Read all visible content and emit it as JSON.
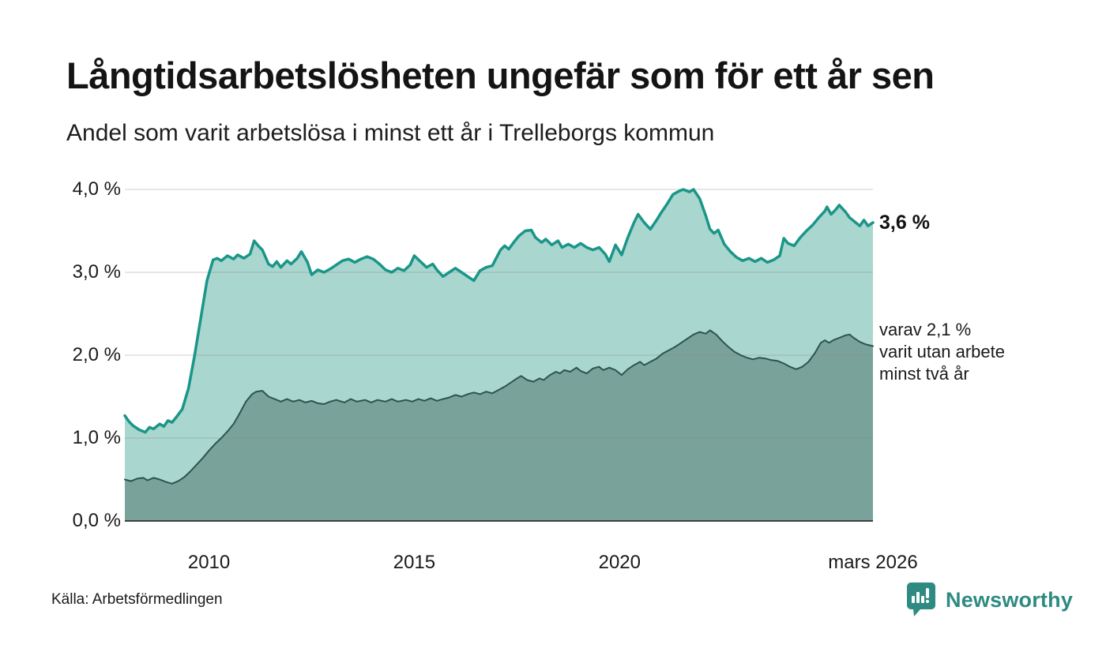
{
  "header": {
    "title": "Långtidsarbetslösheten ungefär som för ett år sen",
    "subtitle": "Andel som varit arbetslösa i minst ett år i Trelleborgs kommun"
  },
  "footer": {
    "source": "Källa: Arbetsförmedlingen",
    "brand": "Newsworthy",
    "brand_color": "#2f8b82"
  },
  "annotations": {
    "latest_total": {
      "label": "3,6 %",
      "value": 3.6
    },
    "latest_two_years": {
      "lines": [
        "varav 2,1 %",
        "varit utan arbete",
        "minst två år"
      ],
      "value": 2.1
    }
  },
  "chart_data": {
    "type": "area",
    "title": "Långtidsarbetslösheten ungefär som för ett år sen",
    "subtitle": "Andel som varit arbetslösa i minst ett år i Trelleborgs kommun",
    "xlabel": "",
    "ylabel": "",
    "xlim": [
      2007.95,
      2026.17
    ],
    "ylim": [
      0,
      4
    ],
    "grid": true,
    "grid_color": "#8a8a8a",
    "axis_color": "#3f3f3f",
    "y_ticks": [
      {
        "label": "4,0 %",
        "value": 4.0
      },
      {
        "label": "3,0 %",
        "value": 3.0
      },
      {
        "label": "2,0 %",
        "value": 2.0
      },
      {
        "label": "1,0 %",
        "value": 1.0
      },
      {
        "label": "0,0 %",
        "value": 0.0
      }
    ],
    "x_ticks": [
      {
        "label": "2010",
        "value": 2010
      },
      {
        "label": "2015",
        "value": 2015
      },
      {
        "label": "2020",
        "value": 2020
      },
      {
        "label": "mars 2026",
        "value": 2026.17
      }
    ],
    "series": [
      {
        "name": "arbetslösa minst ett år",
        "line_color": "#1a9689",
        "fill_color": "#a9d6ce",
        "line_width": 3.5,
        "last_value": 3.6,
        "points": [
          [
            2007.95,
            1.27
          ],
          [
            2008.05,
            1.2
          ],
          [
            2008.15,
            1.15
          ],
          [
            2008.3,
            1.1
          ],
          [
            2008.45,
            1.07
          ],
          [
            2008.55,
            1.13
          ],
          [
            2008.65,
            1.11
          ],
          [
            2008.8,
            1.17
          ],
          [
            2008.9,
            1.14
          ],
          [
            2009.0,
            1.21
          ],
          [
            2009.1,
            1.19
          ],
          [
            2009.2,
            1.25
          ],
          [
            2009.35,
            1.35
          ],
          [
            2009.5,
            1.6
          ],
          [
            2009.65,
            2.0
          ],
          [
            2009.8,
            2.45
          ],
          [
            2009.95,
            2.9
          ],
          [
            2010.1,
            3.15
          ],
          [
            2010.2,
            3.17
          ],
          [
            2010.3,
            3.14
          ],
          [
            2010.45,
            3.2
          ],
          [
            2010.6,
            3.16
          ],
          [
            2010.7,
            3.21
          ],
          [
            2010.85,
            3.17
          ],
          [
            2011.0,
            3.22
          ],
          [
            2011.1,
            3.38
          ],
          [
            2011.2,
            3.32
          ],
          [
            2011.3,
            3.27
          ],
          [
            2011.45,
            3.1
          ],
          [
            2011.55,
            3.07
          ],
          [
            2011.65,
            3.13
          ],
          [
            2011.75,
            3.06
          ],
          [
            2011.9,
            3.14
          ],
          [
            2012.0,
            3.1
          ],
          [
            2012.15,
            3.17
          ],
          [
            2012.25,
            3.25
          ],
          [
            2012.4,
            3.12
          ],
          [
            2012.5,
            2.97
          ],
          [
            2012.65,
            3.03
          ],
          [
            2012.8,
            3.0
          ],
          [
            2012.95,
            3.04
          ],
          [
            2013.1,
            3.09
          ],
          [
            2013.25,
            3.14
          ],
          [
            2013.4,
            3.16
          ],
          [
            2013.55,
            3.12
          ],
          [
            2013.7,
            3.16
          ],
          [
            2013.85,
            3.19
          ],
          [
            2014.0,
            3.16
          ],
          [
            2014.15,
            3.1
          ],
          [
            2014.3,
            3.03
          ],
          [
            2014.45,
            3.0
          ],
          [
            2014.6,
            3.05
          ],
          [
            2014.75,
            3.02
          ],
          [
            2014.9,
            3.09
          ],
          [
            2015.0,
            3.2
          ],
          [
            2015.15,
            3.13
          ],
          [
            2015.3,
            3.06
          ],
          [
            2015.45,
            3.1
          ],
          [
            2015.55,
            3.03
          ],
          [
            2015.7,
            2.95
          ],
          [
            2015.85,
            3.0
          ],
          [
            2016.0,
            3.05
          ],
          [
            2016.15,
            3.0
          ],
          [
            2016.3,
            2.95
          ],
          [
            2016.45,
            2.9
          ],
          [
            2016.6,
            3.02
          ],
          [
            2016.75,
            3.06
          ],
          [
            2016.9,
            3.08
          ],
          [
            2017.1,
            3.27
          ],
          [
            2017.2,
            3.32
          ],
          [
            2017.3,
            3.28
          ],
          [
            2017.45,
            3.38
          ],
          [
            2017.55,
            3.44
          ],
          [
            2017.7,
            3.5
          ],
          [
            2017.85,
            3.51
          ],
          [
            2017.95,
            3.42
          ],
          [
            2018.1,
            3.36
          ],
          [
            2018.2,
            3.4
          ],
          [
            2018.35,
            3.33
          ],
          [
            2018.5,
            3.38
          ],
          [
            2018.6,
            3.3
          ],
          [
            2018.75,
            3.34
          ],
          [
            2018.9,
            3.3
          ],
          [
            2019.05,
            3.35
          ],
          [
            2019.2,
            3.3
          ],
          [
            2019.35,
            3.27
          ],
          [
            2019.5,
            3.3
          ],
          [
            2019.65,
            3.22
          ],
          [
            2019.75,
            3.13
          ],
          [
            2019.9,
            3.33
          ],
          [
            2020.05,
            3.21
          ],
          [
            2020.2,
            3.42
          ],
          [
            2020.35,
            3.6
          ],
          [
            2020.45,
            3.7
          ],
          [
            2020.6,
            3.6
          ],
          [
            2020.75,
            3.52
          ],
          [
            2020.9,
            3.63
          ],
          [
            2021.0,
            3.71
          ],
          [
            2021.15,
            3.82
          ],
          [
            2021.3,
            3.94
          ],
          [
            2021.45,
            3.98
          ],
          [
            2021.55,
            4.0
          ],
          [
            2021.7,
            3.97
          ],
          [
            2021.8,
            4.0
          ],
          [
            2021.95,
            3.89
          ],
          [
            2022.1,
            3.68
          ],
          [
            2022.2,
            3.52
          ],
          [
            2022.3,
            3.47
          ],
          [
            2022.4,
            3.51
          ],
          [
            2022.55,
            3.34
          ],
          [
            2022.7,
            3.25
          ],
          [
            2022.85,
            3.18
          ],
          [
            2023.0,
            3.14
          ],
          [
            2023.15,
            3.17
          ],
          [
            2023.3,
            3.13
          ],
          [
            2023.45,
            3.17
          ],
          [
            2023.6,
            3.12
          ],
          [
            2023.75,
            3.15
          ],
          [
            2023.9,
            3.2
          ],
          [
            2024.0,
            3.41
          ],
          [
            2024.1,
            3.35
          ],
          [
            2024.25,
            3.32
          ],
          [
            2024.4,
            3.42
          ],
          [
            2024.55,
            3.5
          ],
          [
            2024.7,
            3.57
          ],
          [
            2024.85,
            3.66
          ],
          [
            2025.0,
            3.74
          ],
          [
            2025.05,
            3.79
          ],
          [
            2025.15,
            3.7
          ],
          [
            2025.25,
            3.75
          ],
          [
            2025.35,
            3.81
          ],
          [
            2025.5,
            3.73
          ],
          [
            2025.6,
            3.66
          ],
          [
            2025.75,
            3.6
          ],
          [
            2025.85,
            3.56
          ],
          [
            2025.95,
            3.63
          ],
          [
            2026.05,
            3.56
          ],
          [
            2026.17,
            3.6
          ]
        ]
      },
      {
        "name": "varit utan arbete minst två år",
        "line_color": "#2c544d",
        "fill_color": "#79a39a",
        "line_width": 2,
        "last_value": 2.1,
        "points": [
          [
            2007.95,
            0.5
          ],
          [
            2008.1,
            0.48
          ],
          [
            2008.25,
            0.51
          ],
          [
            2008.4,
            0.52
          ],
          [
            2008.5,
            0.49
          ],
          [
            2008.65,
            0.52
          ],
          [
            2008.8,
            0.5
          ],
          [
            2008.95,
            0.47
          ],
          [
            2009.1,
            0.45
          ],
          [
            2009.25,
            0.48
          ],
          [
            2009.4,
            0.53
          ],
          [
            2009.55,
            0.6
          ],
          [
            2009.7,
            0.68
          ],
          [
            2009.85,
            0.76
          ],
          [
            2010.0,
            0.85
          ],
          [
            2010.15,
            0.93
          ],
          [
            2010.3,
            1.0
          ],
          [
            2010.45,
            1.08
          ],
          [
            2010.6,
            1.17
          ],
          [
            2010.75,
            1.3
          ],
          [
            2010.9,
            1.44
          ],
          [
            2011.05,
            1.53
          ],
          [
            2011.15,
            1.56
          ],
          [
            2011.3,
            1.57
          ],
          [
            2011.45,
            1.5
          ],
          [
            2011.6,
            1.47
          ],
          [
            2011.75,
            1.44
          ],
          [
            2011.9,
            1.47
          ],
          [
            2012.05,
            1.44
          ],
          [
            2012.2,
            1.46
          ],
          [
            2012.35,
            1.43
          ],
          [
            2012.5,
            1.45
          ],
          [
            2012.65,
            1.42
          ],
          [
            2012.8,
            1.41
          ],
          [
            2012.95,
            1.44
          ],
          [
            2013.1,
            1.46
          ],
          [
            2013.3,
            1.43
          ],
          [
            2013.45,
            1.47
          ],
          [
            2013.6,
            1.44
          ],
          [
            2013.8,
            1.46
          ],
          [
            2013.95,
            1.43
          ],
          [
            2014.1,
            1.46
          ],
          [
            2014.3,
            1.44
          ],
          [
            2014.45,
            1.47
          ],
          [
            2014.6,
            1.44
          ],
          [
            2014.8,
            1.46
          ],
          [
            2014.95,
            1.44
          ],
          [
            2015.1,
            1.47
          ],
          [
            2015.25,
            1.45
          ],
          [
            2015.4,
            1.48
          ],
          [
            2015.55,
            1.45
          ],
          [
            2015.7,
            1.47
          ],
          [
            2015.85,
            1.49
          ],
          [
            2016.0,
            1.52
          ],
          [
            2016.15,
            1.5
          ],
          [
            2016.3,
            1.53
          ],
          [
            2016.45,
            1.55
          ],
          [
            2016.6,
            1.53
          ],
          [
            2016.75,
            1.56
          ],
          [
            2016.9,
            1.54
          ],
          [
            2017.05,
            1.58
          ],
          [
            2017.2,
            1.62
          ],
          [
            2017.35,
            1.67
          ],
          [
            2017.5,
            1.72
          ],
          [
            2017.6,
            1.75
          ],
          [
            2017.75,
            1.7
          ],
          [
            2017.9,
            1.68
          ],
          [
            2018.05,
            1.72
          ],
          [
            2018.15,
            1.7
          ],
          [
            2018.3,
            1.76
          ],
          [
            2018.45,
            1.8
          ],
          [
            2018.55,
            1.78
          ],
          [
            2018.65,
            1.82
          ],
          [
            2018.8,
            1.8
          ],
          [
            2018.95,
            1.85
          ],
          [
            2019.05,
            1.81
          ],
          [
            2019.2,
            1.78
          ],
          [
            2019.35,
            1.84
          ],
          [
            2019.5,
            1.86
          ],
          [
            2019.6,
            1.82
          ],
          [
            2019.75,
            1.85
          ],
          [
            2019.9,
            1.82
          ],
          [
            2020.05,
            1.76
          ],
          [
            2020.2,
            1.83
          ],
          [
            2020.35,
            1.88
          ],
          [
            2020.5,
            1.92
          ],
          [
            2020.6,
            1.88
          ],
          [
            2020.75,
            1.92
          ],
          [
            2020.9,
            1.96
          ],
          [
            2021.05,
            2.02
          ],
          [
            2021.2,
            2.06
          ],
          [
            2021.35,
            2.1
          ],
          [
            2021.5,
            2.15
          ],
          [
            2021.65,
            2.2
          ],
          [
            2021.8,
            2.25
          ],
          [
            2021.95,
            2.28
          ],
          [
            2022.1,
            2.26
          ],
          [
            2022.2,
            2.3
          ],
          [
            2022.35,
            2.25
          ],
          [
            2022.5,
            2.17
          ],
          [
            2022.65,
            2.1
          ],
          [
            2022.8,
            2.04
          ],
          [
            2022.95,
            2.0
          ],
          [
            2023.1,
            1.97
          ],
          [
            2023.25,
            1.95
          ],
          [
            2023.4,
            1.97
          ],
          [
            2023.55,
            1.96
          ],
          [
            2023.7,
            1.94
          ],
          [
            2023.85,
            1.93
          ],
          [
            2024.0,
            1.9
          ],
          [
            2024.15,
            1.86
          ],
          [
            2024.3,
            1.83
          ],
          [
            2024.45,
            1.86
          ],
          [
            2024.6,
            1.92
          ],
          [
            2024.75,
            2.02
          ],
          [
            2024.9,
            2.15
          ],
          [
            2025.0,
            2.18
          ],
          [
            2025.1,
            2.15
          ],
          [
            2025.2,
            2.18
          ],
          [
            2025.35,
            2.21
          ],
          [
            2025.5,
            2.24
          ],
          [
            2025.6,
            2.25
          ],
          [
            2025.7,
            2.21
          ],
          [
            2025.85,
            2.16
          ],
          [
            2026.0,
            2.13
          ],
          [
            2026.17,
            2.11
          ]
        ]
      }
    ]
  }
}
